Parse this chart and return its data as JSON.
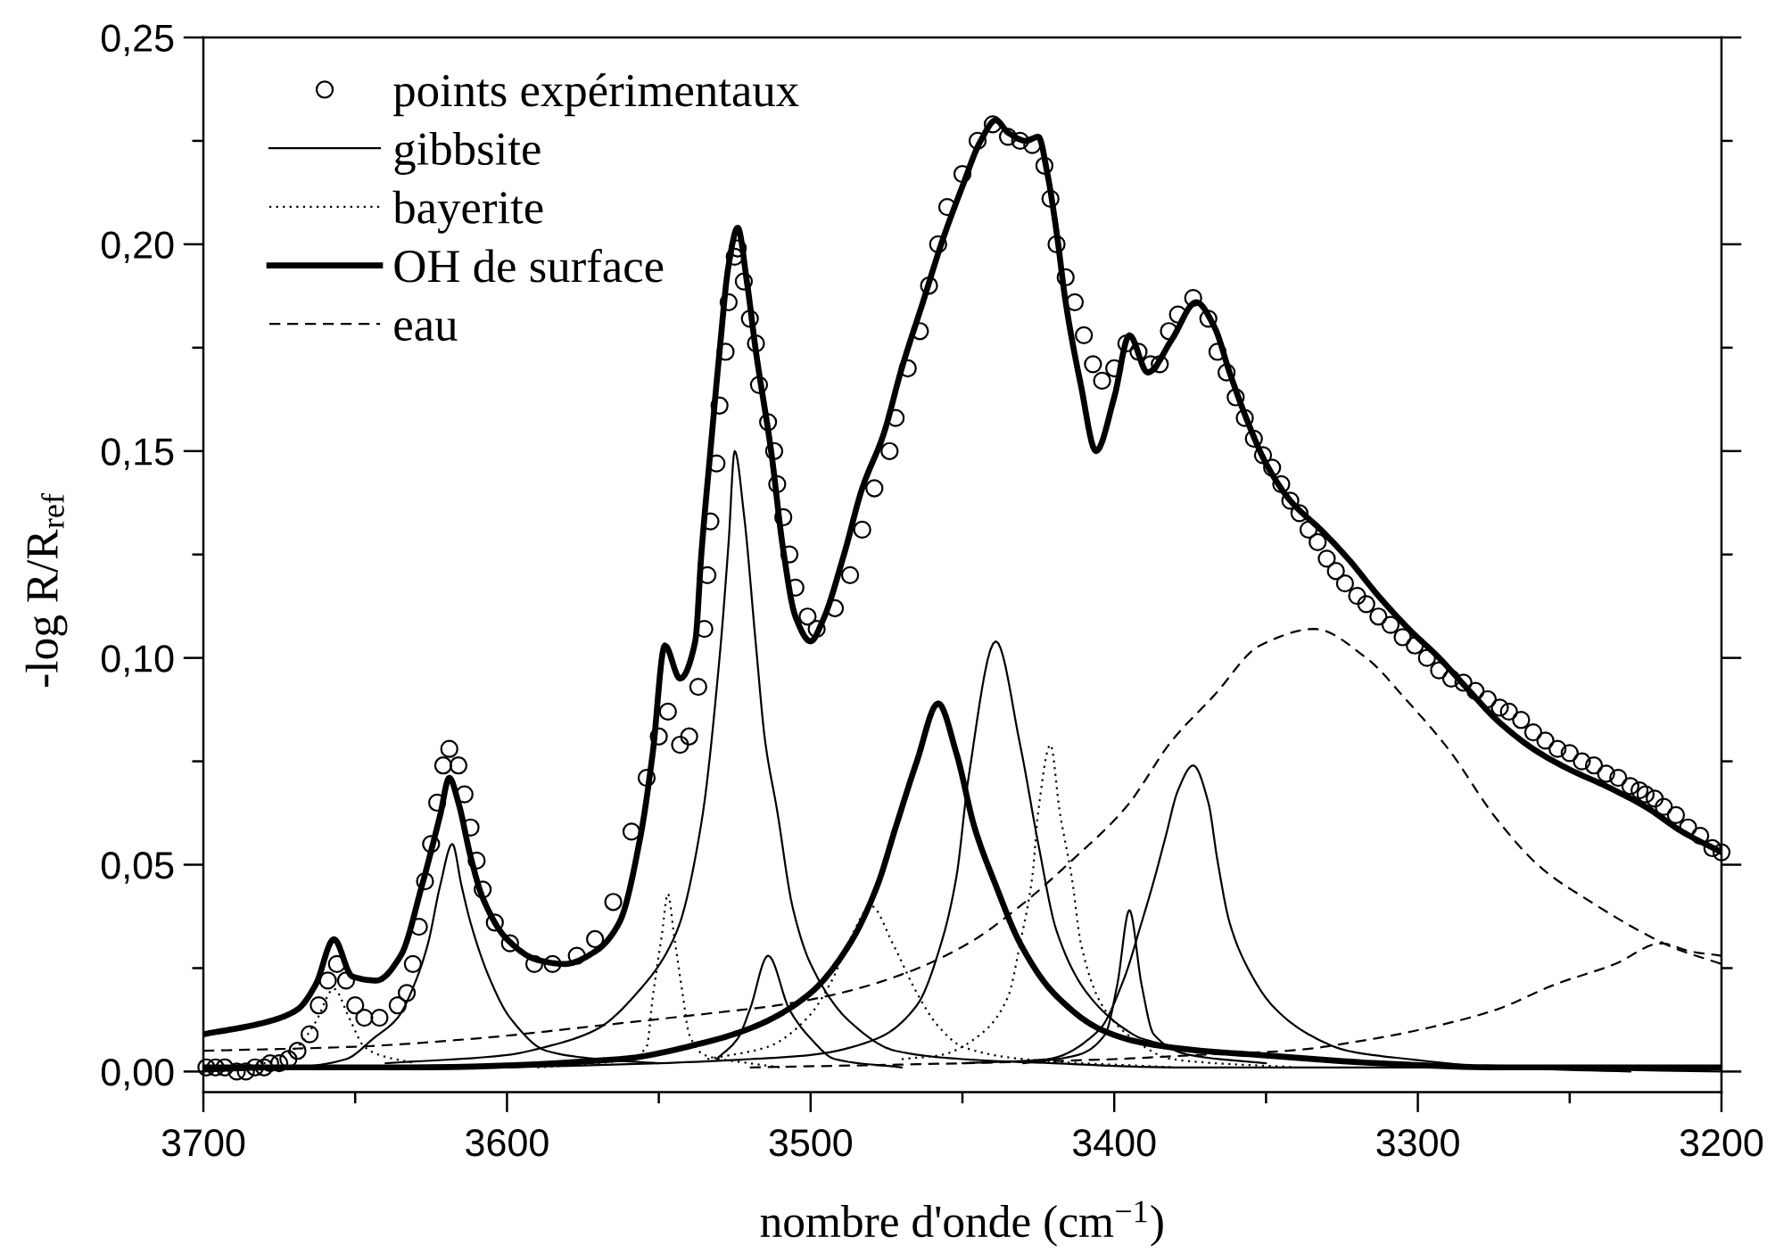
{
  "chart_data": {
    "type": "line",
    "xlabel": "nombre d'onde (cm$^{−1}$)",
    "ylabel": "-log R/R$_{ref}$",
    "xlim": [
      3700,
      3200
    ],
    "ylim": [
      -0.005,
      0.25
    ],
    "xticks": [
      3700,
      {
        "value": 3650,
        "label": null
      },
      3600,
      {
        "value": 3550,
        "label": null
      },
      3500,
      {
        "value": 3450,
        "label": null
      },
      3400,
      {
        "value": 3350,
        "label": null
      },
      3300,
      {
        "value": 3250,
        "label": null
      },
      3200
    ],
    "yticks": [
      {
        "value": 0,
        "label": "0,00"
      },
      {
        "value": 0.025,
        "label": null
      },
      {
        "value": 0.05,
        "label": "0,05"
      },
      {
        "value": 0.075,
        "label": null
      },
      {
        "value": 0.1,
        "label": "0,10"
      },
      {
        "value": 0.125,
        "label": null
      },
      {
        "value": 0.15,
        "label": "0,15"
      },
      {
        "value": 0.175,
        "label": null
      },
      {
        "value": 0.2,
        "label": "0,20"
      },
      {
        "value": 0.225,
        "label": null
      },
      {
        "value": 0.25,
        "label": "0,25"
      }
    ],
    "legend": "top left",
    "series": [
      {
        "name": "points expérimentaux",
        "type": "scatter",
        "marker": "circle",
        "color": "#000000",
        "x": [
          3699,
          3696,
          3693,
          3689,
          3686,
          3683,
          3680,
          3678,
          3675,
          3672,
          3669,
          3665,
          3662,
          3659,
          3656,
          3653,
          3650,
          3647,
          3642,
          3636,
          3633,
          3631,
          3629,
          3627,
          3625,
          3623,
          3621,
          3619,
          3616,
          3614,
          3612,
          3610,
          3608,
          3604,
          3599,
          3591,
          3585,
          3577,
          3571,
          3565,
          3559,
          3554,
          3550,
          3547,
          3543,
          3540,
          3537,
          3535,
          3534,
          3533,
          3531,
          3530,
          3528,
          3527,
          3525,
          3524,
          3522,
          3520,
          3518,
          3517,
          3514,
          3512,
          3511,
          3509,
          3507,
          3505,
          3501,
          3498,
          3492,
          3487,
          3483,
          3479,
          3474,
          3472,
          3468,
          3464,
          3461,
          3458,
          3455,
          3450,
          3445,
          3440,
          3435,
          3431,
          3427,
          3423,
          3421,
          3419,
          3416,
          3413,
          3410,
          3407,
          3404,
          3400,
          3396,
          3392,
          3388,
          3385,
          3382,
          3379,
          3374,
          3369,
          3366,
          3363,
          3360,
          3357,
          3354,
          3351,
          3348,
          3345,
          3342,
          3339,
          3336,
          3333,
          3330,
          3327,
          3324,
          3320,
          3317,
          3313,
          3309,
          3305,
          3301,
          3297,
          3293,
          3289,
          3285,
          3281,
          3277,
          3273,
          3270,
          3266,
          3262,
          3258,
          3254,
          3250,
          3246,
          3242,
          3238,
          3234,
          3230,
          3227,
          3225,
          3222,
          3219,
          3215,
          3211,
          3207,
          3203,
          3200
        ],
        "values": [
          0.001,
          0.001,
          0.001,
          0.0,
          0.0,
          0.001,
          0.001,
          0.002,
          0.002,
          0.003,
          0.005,
          0.009,
          0.016,
          0.022,
          0.026,
          0.022,
          0.016,
          0.013,
          0.013,
          0.016,
          0.019,
          0.026,
          0.035,
          0.046,
          0.055,
          0.065,
          0.074,
          0.078,
          0.074,
          0.067,
          0.059,
          0.051,
          0.044,
          0.036,
          0.031,
          0.026,
          0.026,
          0.028,
          0.032,
          0.041,
          0.058,
          0.071,
          0.081,
          0.087,
          0.079,
          0.081,
          0.093,
          0.107,
          0.12,
          0.133,
          0.147,
          0.161,
          0.174,
          0.186,
          0.197,
          0.199,
          0.191,
          0.182,
          0.176,
          0.166,
          0.157,
          0.15,
          0.142,
          0.134,
          0.125,
          0.117,
          0.11,
          0.107,
          0.112,
          0.12,
          0.131,
          0.141,
          0.15,
          0.158,
          0.17,
          0.179,
          0.19,
          0.2,
          0.209,
          0.217,
          0.225,
          0.229,
          0.226,
          0.225,
          0.224,
          0.219,
          0.211,
          0.2,
          0.192,
          0.186,
          0.178,
          0.171,
          0.167,
          0.17,
          0.176,
          0.174,
          0.171,
          0.171,
          0.179,
          0.183,
          0.187,
          0.182,
          0.174,
          0.169,
          0.163,
          0.158,
          0.153,
          0.149,
          0.146,
          0.142,
          0.138,
          0.135,
          0.131,
          0.128,
          0.124,
          0.121,
          0.118,
          0.115,
          0.113,
          0.11,
          0.108,
          0.105,
          0.103,
          0.1,
          0.097,
          0.095,
          0.094,
          0.092,
          0.09,
          0.088,
          0.087,
          0.085,
          0.082,
          0.08,
          0.078,
          0.077,
          0.075,
          0.074,
          0.072,
          0.071,
          0.069,
          0.068,
          0.067,
          0.066,
          0.064,
          0.062,
          0.059,
          0.057,
          0.054,
          0.053
        ]
      },
      {
        "name": "gibbsite",
        "line_style": "solid",
        "color": "#000000",
        "x": [
          3700,
          3669,
          3653,
          3644,
          3636,
          3630,
          3626,
          3622,
          3618,
          3615,
          3612,
          3606,
          3599,
          3587,
          3570,
          3550
        ],
        "values": [
          0.0,
          0.001,
          0.003,
          0.008,
          0.013,
          0.022,
          0.031,
          0.045,
          0.055,
          0.045,
          0.036,
          0.023,
          0.013,
          0.005,
          0.003,
          0.002
        ]
      },
      {
        "line_style": "solid",
        "color": "#000000",
        "x": [
          3640,
          3600,
          3587,
          3571,
          3556,
          3544,
          3536,
          3530,
          3527,
          3525,
          3522,
          3518,
          3515,
          3511,
          3506,
          3500,
          3487,
          3472,
          3450,
          3420,
          3380,
          3300,
          3200
        ],
        "values": [
          0.002,
          0.004,
          0.006,
          0.01,
          0.02,
          0.034,
          0.06,
          0.1,
          0.128,
          0.15,
          0.135,
          0.103,
          0.08,
          0.063,
          0.04,
          0.026,
          0.012,
          0.005,
          0.003,
          0.002,
          0.001,
          0.001,
          0.0
        ]
      },
      {
        "line_style": "solid",
        "color": "#000000",
        "x": [
          3531,
          3524,
          3520,
          3514,
          3507,
          3500,
          3492,
          3470
        ],
        "values": [
          0.003,
          0.008,
          0.015,
          0.028,
          0.015,
          0.008,
          0.003,
          0.001
        ]
      },
      {
        "line_style": "solid",
        "color": "#000000",
        "x": [
          3600,
          3550,
          3520,
          3500,
          3478,
          3465,
          3457,
          3452,
          3448,
          3439,
          3431,
          3425,
          3419,
          3409,
          3396,
          3391,
          3371,
          3332,
          3280
        ],
        "values": [
          0.001,
          0.002,
          0.003,
          0.004,
          0.008,
          0.016,
          0.031,
          0.047,
          0.071,
          0.104,
          0.079,
          0.055,
          0.034,
          0.019,
          0.01,
          0.008,
          0.005,
          0.003,
          0.001
        ]
      },
      {
        "line_style": "solid",
        "color": "#000000",
        "x": [
          3430,
          3412,
          3403,
          3399,
          3395,
          3391,
          3387,
          3375,
          3350
        ],
        "values": [
          0.002,
          0.004,
          0.009,
          0.021,
          0.039,
          0.021,
          0.009,
          0.004,
          0.002
        ]
      },
      {
        "line_style": "solid",
        "color": "#000000",
        "x": [
          3450,
          3422,
          3405,
          3397,
          3391,
          3387,
          3383,
          3379,
          3374,
          3369,
          3366,
          3362,
          3356,
          3348,
          3336,
          3323,
          3303,
          3274,
          3230
        ],
        "values": [
          0.002,
          0.003,
          0.01,
          0.022,
          0.036,
          0.046,
          0.057,
          0.068,
          0.074,
          0.065,
          0.051,
          0.036,
          0.025,
          0.016,
          0.009,
          0.005,
          0.003,
          0.001,
          0.0
        ]
      },
      {
        "name": "bayerite",
        "line_style": "dotted",
        "color": "#000000",
        "x": [
          3700,
          3680,
          3669,
          3663,
          3657,
          3652,
          3647,
          3642,
          3630
        ],
        "values": [
          0.0,
          0.002,
          0.006,
          0.012,
          0.02,
          0.013,
          0.006,
          0.004,
          0.002
        ]
      },
      {
        "line_style": "dotted",
        "color": "#000000",
        "x": [
          3590,
          3570,
          3560,
          3554,
          3552,
          3549,
          3547,
          3545,
          3542,
          3540,
          3535,
          3520,
          3510
        ],
        "values": [
          0.001,
          0.002,
          0.003,
          0.006,
          0.018,
          0.033,
          0.043,
          0.033,
          0.018,
          0.009,
          0.004,
          0.002,
          0.001
        ]
      },
      {
        "line_style": "dotted",
        "color": "#000000",
        "x": [
          3534,
          3514,
          3501,
          3493,
          3487,
          3480,
          3473,
          3465,
          3458,
          3450,
          3430,
          3380
        ],
        "values": [
          0.003,
          0.006,
          0.013,
          0.022,
          0.032,
          0.04,
          0.031,
          0.019,
          0.011,
          0.006,
          0.003,
          0.001
        ]
      },
      {
        "line_style": "dotted",
        "color": "#000000",
        "x": [
          3470,
          3457,
          3444,
          3435,
          3431,
          3427,
          3425,
          3421,
          3418,
          3414,
          3411,
          3404,
          3394,
          3381,
          3340
        ],
        "values": [
          0.003,
          0.004,
          0.009,
          0.018,
          0.031,
          0.047,
          0.063,
          0.079,
          0.063,
          0.047,
          0.031,
          0.016,
          0.008,
          0.003,
          0.001
        ]
      },
      {
        "name": "OH de surface",
        "line_style": "solid",
        "color": "#000000",
        "x": [
          3700,
          3632,
          3563,
          3535,
          3518,
          3500,
          3487,
          3478,
          3472,
          3465,
          3458,
          3452,
          3446,
          3439,
          3431,
          3420,
          3404,
          3391,
          3371,
          3352,
          3313,
          3273,
          3200
        ],
        "values": [
          0.001,
          0.001,
          0.003,
          0.007,
          0.011,
          0.019,
          0.031,
          0.045,
          0.059,
          0.075,
          0.089,
          0.077,
          0.059,
          0.045,
          0.031,
          0.019,
          0.01,
          0.007,
          0.005,
          0.004,
          0.002,
          0.001,
          0.001
        ]
      },
      {
        "line_style": "solid",
        "color": "#000000",
        "x": [
          3700,
          3679,
          3669,
          3663,
          3657,
          3651,
          3643,
          3635,
          3628,
          3622,
          3619,
          3616,
          3612,
          3608,
          3600,
          3590,
          3581,
          3571,
          3563,
          3556,
          3552,
          3548,
          3543,
          3538,
          3536,
          3533,
          3530,
          3527,
          3524,
          3521,
          3518,
          3513,
          3509,
          3505,
          3500,
          3496,
          3489,
          3483,
          3476,
          3470,
          3463,
          3457,
          3450,
          3444,
          3439,
          3435,
          3429,
          3425,
          3422,
          3419,
          3416,
          3411,
          3406,
          3400,
          3395,
          3389,
          3381,
          3373,
          3367,
          3362,
          3356,
          3350,
          3342,
          3332,
          3323,
          3313,
          3303,
          3293,
          3283,
          3274,
          3262,
          3250,
          3238,
          3225,
          3213,
          3200
        ],
        "values": [
          0.009,
          0.012,
          0.015,
          0.021,
          0.032,
          0.023,
          0.022,
          0.028,
          0.045,
          0.062,
          0.071,
          0.065,
          0.052,
          0.042,
          0.032,
          0.027,
          0.026,
          0.029,
          0.036,
          0.057,
          0.077,
          0.103,
          0.095,
          0.104,
          0.125,
          0.15,
          0.174,
          0.195,
          0.204,
          0.191,
          0.174,
          0.15,
          0.126,
          0.11,
          0.104,
          0.109,
          0.125,
          0.141,
          0.154,
          0.17,
          0.186,
          0.2,
          0.214,
          0.225,
          0.23,
          0.227,
          0.225,
          0.226,
          0.217,
          0.203,
          0.186,
          0.166,
          0.15,
          0.163,
          0.178,
          0.169,
          0.177,
          0.186,
          0.18,
          0.169,
          0.157,
          0.147,
          0.138,
          0.131,
          0.124,
          0.115,
          0.107,
          0.1,
          0.092,
          0.085,
          0.078,
          0.073,
          0.069,
          0.064,
          0.058,
          0.053
        ]
      },
      {
        "name": "eau",
        "line_style": "dashed",
        "color": "#000000",
        "x": [
          3700,
          3650,
          3610,
          3571,
          3534,
          3511,
          3490,
          3468,
          3448,
          3431,
          3414,
          3396,
          3381,
          3367,
          3352,
          3334,
          3317,
          3304,
          3290,
          3274,
          3259,
          3243,
          3227,
          3216,
          3200
        ],
        "values": [
          0.005,
          0.006,
          0.008,
          0.011,
          0.014,
          0.016,
          0.019,
          0.024,
          0.031,
          0.04,
          0.051,
          0.064,
          0.08,
          0.091,
          0.103,
          0.107,
          0.1,
          0.09,
          0.078,
          0.061,
          0.049,
          0.041,
          0.034,
          0.03,
          0.026
        ]
      },
      {
        "line_style": "dashed",
        "color": "#000000",
        "x": [
          3520,
          3450,
          3400,
          3373,
          3343,
          3314,
          3294,
          3274,
          3255,
          3235,
          3220,
          3210,
          3200
        ],
        "values": [
          0.001,
          0.002,
          0.003,
          0.004,
          0.005,
          0.008,
          0.011,
          0.015,
          0.021,
          0.026,
          0.031,
          0.029,
          0.028
        ]
      }
    ]
  }
}
